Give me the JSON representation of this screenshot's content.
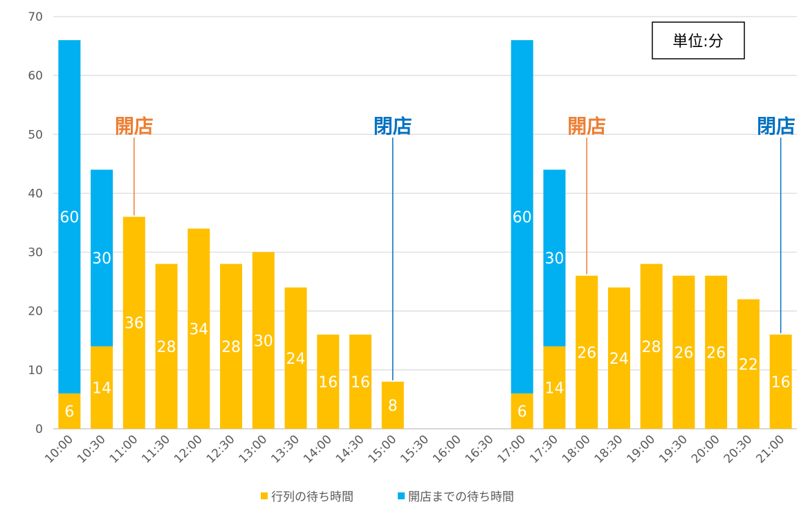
{
  "chart_data": {
    "type": "bar",
    "stacked": true,
    "categories": [
      "10:00",
      "10:30",
      "11:00",
      "11:30",
      "12:00",
      "12:30",
      "13:00",
      "13:30",
      "14:00",
      "14:30",
      "15:00",
      "15:30",
      "16:00",
      "16:30",
      "17:00",
      "17:30",
      "18:00",
      "18:30",
      "19:00",
      "19:30",
      "20:00",
      "20:30",
      "21:00"
    ],
    "series": [
      {
        "name": "行列の待ち時間",
        "color": "#FFC000",
        "values": [
          6,
          14,
          36,
          28,
          34,
          28,
          30,
          24,
          16,
          16,
          8,
          0,
          0,
          0,
          6,
          14,
          26,
          24,
          28,
          26,
          26,
          22,
          16
        ]
      },
      {
        "name": "開店までの待ち時間",
        "color": "#00B0F0",
        "values": [
          60,
          30,
          0,
          0,
          0,
          0,
          0,
          0,
          0,
          0,
          0,
          0,
          0,
          0,
          60,
          30,
          0,
          0,
          0,
          0,
          0,
          0,
          0
        ]
      }
    ],
    "ylim": [
      0,
      70
    ],
    "yticks": [
      "0",
      "10",
      "20",
      "30",
      "40",
      "50",
      "60",
      "70"
    ],
    "grid": true,
    "legend_position": "bottom",
    "unit_label": "単位:分",
    "annotations": [
      {
        "text": "開店",
        "category_index": 2,
        "color": "#ED7D31"
      },
      {
        "text": "閉店",
        "category_index": 10,
        "color": "#0070C0"
      },
      {
        "text": "開店",
        "category_index": 16,
        "color": "#ED7D31"
      },
      {
        "text": "閉店",
        "category_index": 22,
        "color": "#0070C0"
      }
    ]
  }
}
